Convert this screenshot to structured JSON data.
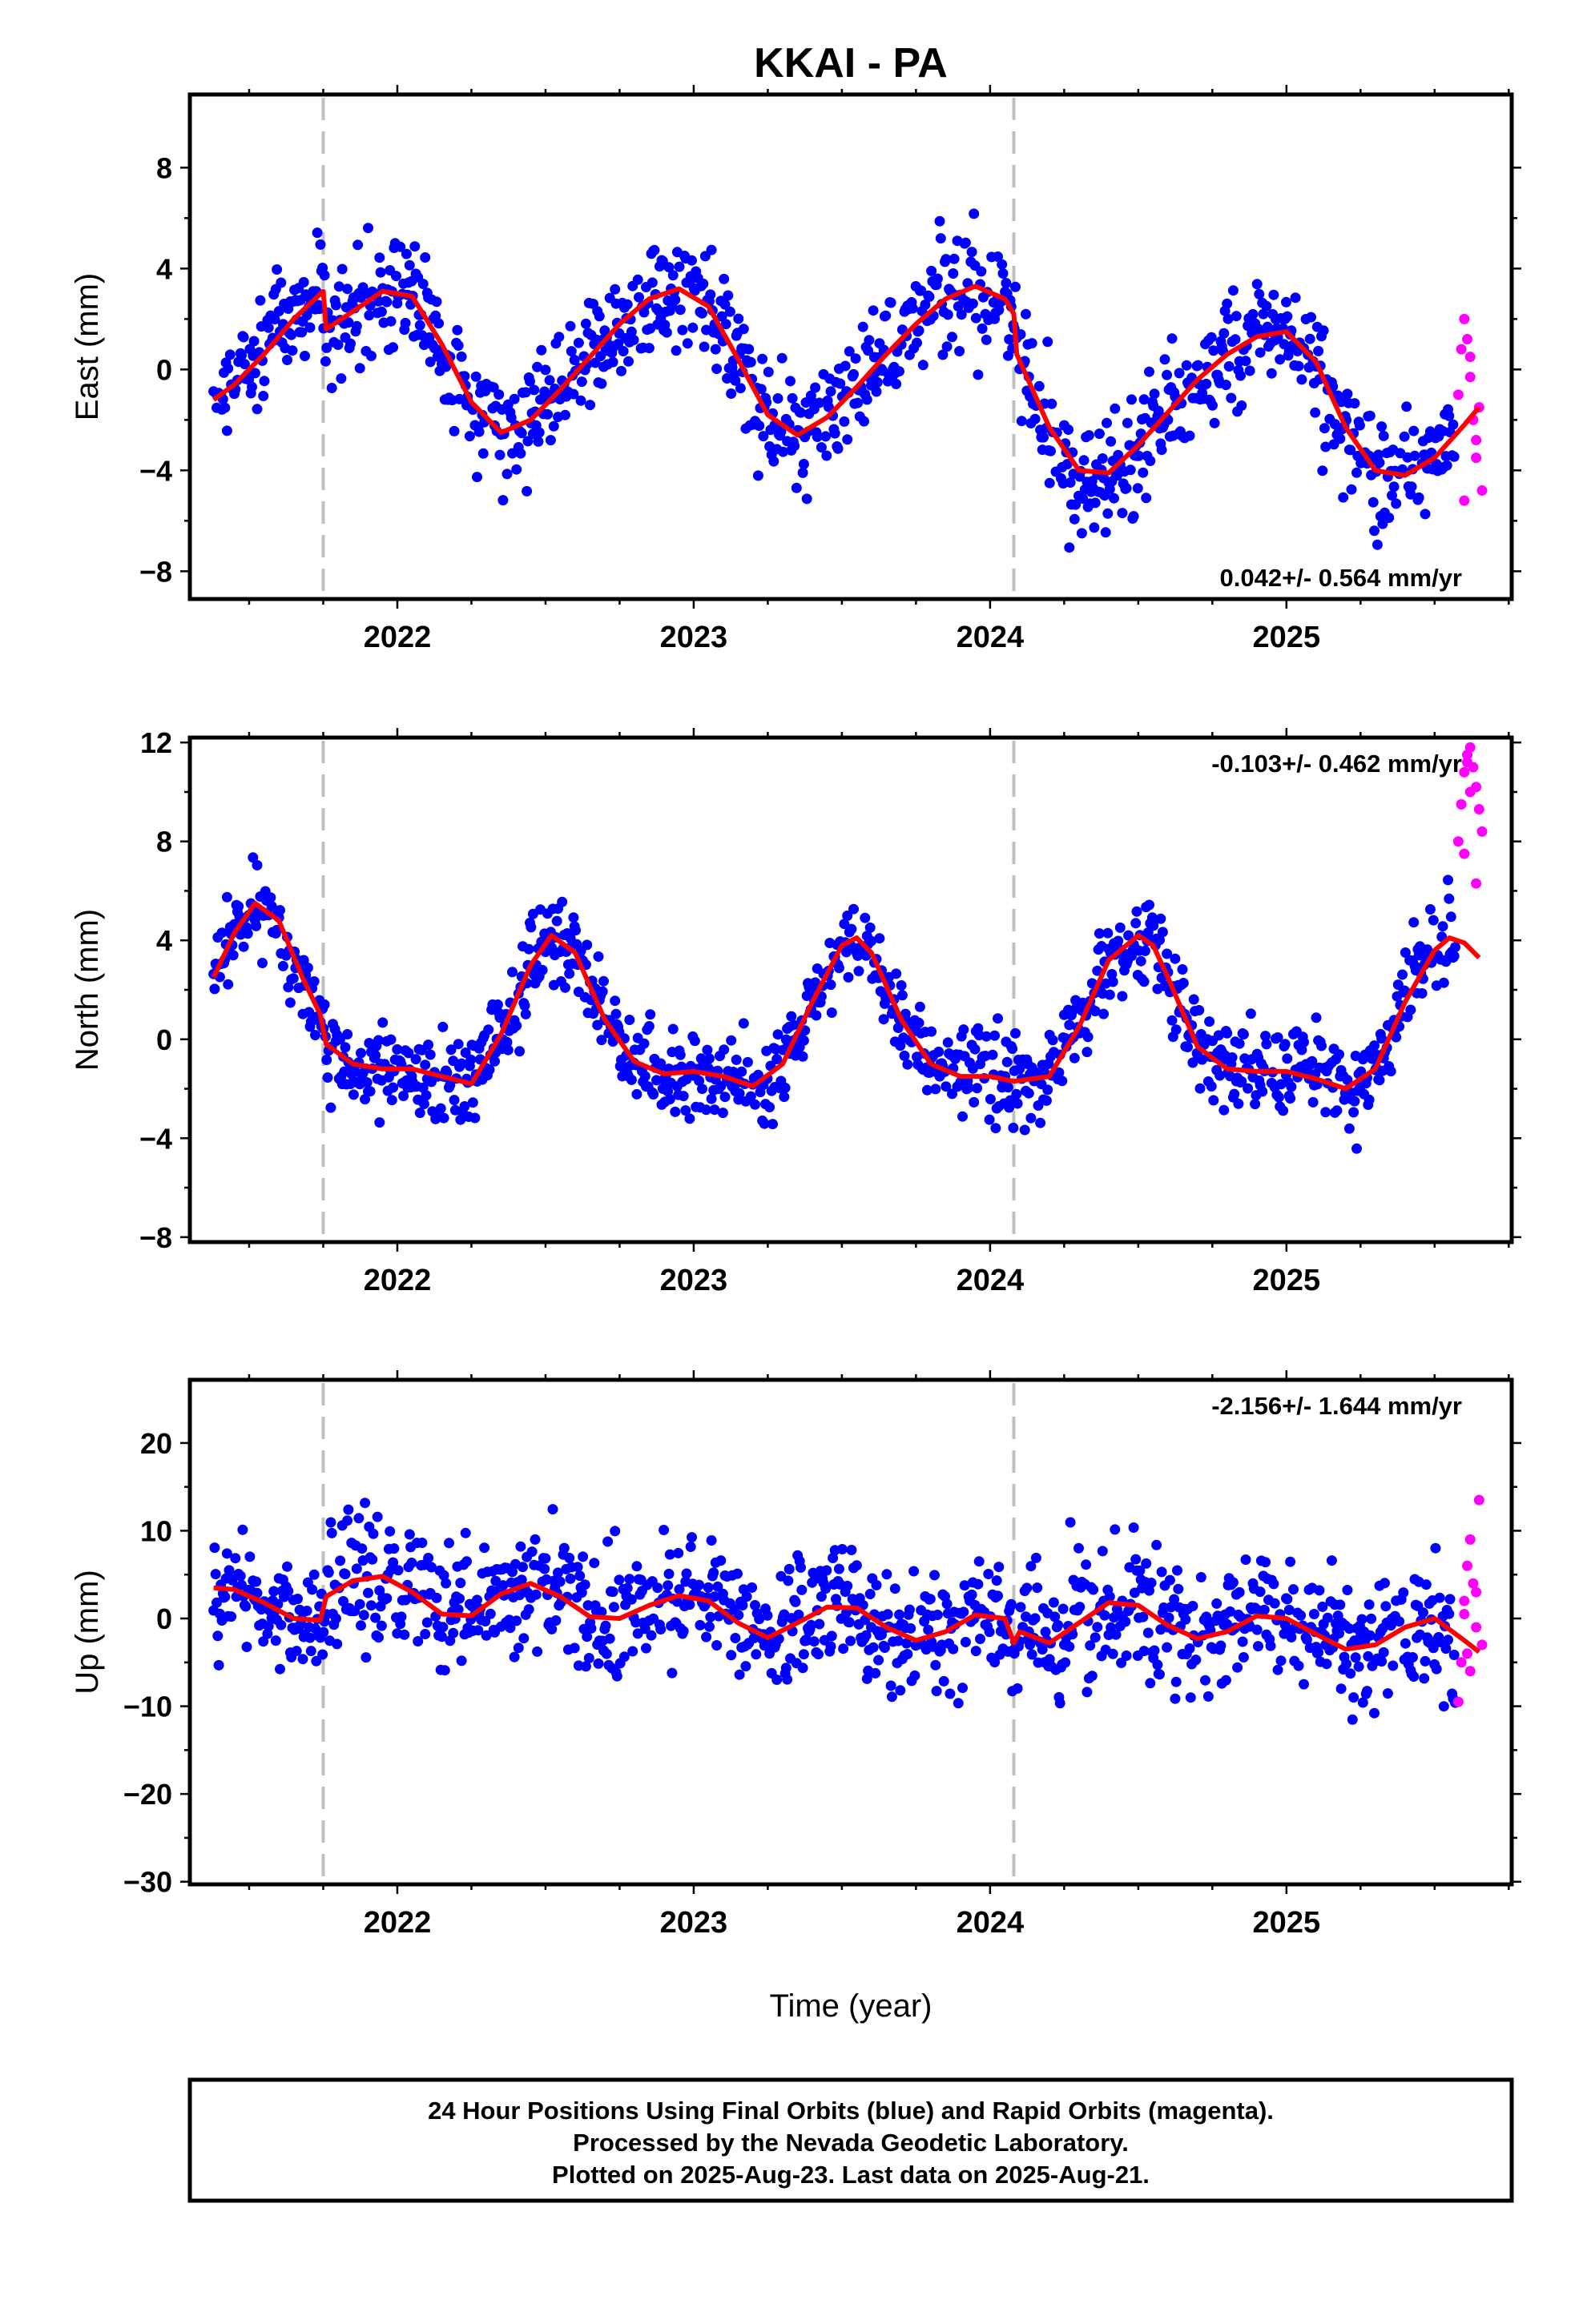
{
  "title": "KKAI - PA",
  "colors": {
    "final": "#0000ff",
    "rapid": "#ff00ff",
    "fit": "#ff0000",
    "event": "#c0c0c0"
  },
  "x_axis": {
    "label": "Time (year)",
    "ticks": [
      "2022",
      "2023",
      "2024",
      "2025"
    ]
  },
  "footer": {
    "line1": "24 Hour Positions Using Final Orbits (blue) and Rapid Orbits (magenta).",
    "line2": "Processed by the Nevada Geodetic Laboratory.",
    "line3": "Plotted on 2025-Aug-23. Last data on 2025-Aug-21."
  },
  "chart_data": [
    {
      "type": "scatter",
      "ylabel": "East (mm)",
      "xlabel": "",
      "rate_label": "0.042+/- 0.564 mm/yr",
      "xlim": [
        2021.3,
        2025.76
      ],
      "ylim": [
        -9.1,
        10.9
      ],
      "yticks": [
        -8,
        -4,
        0,
        4,
        8
      ],
      "xticks": [
        2022,
        2023,
        2024,
        2025
      ],
      "event_lines": [
        2021.75,
        2024.08
      ],
      "fit": {
        "x": [
          2021.38,
          2021.45,
          2021.55,
          2021.65,
          2021.75,
          2021.76,
          2021.85,
          2021.95,
          2022.05,
          2022.15,
          2022.25,
          2022.35,
          2022.45,
          2022.55,
          2022.65,
          2022.75,
          2022.85,
          2022.95,
          2023.05,
          2023.15,
          2023.25,
          2023.35,
          2023.45,
          2023.55,
          2023.65,
          2023.75,
          2023.85,
          2023.95,
          2024.05,
          2024.08,
          2024.09,
          2024.2,
          2024.3,
          2024.4,
          2024.5,
          2024.6,
          2024.7,
          2024.8,
          2024.9,
          2025.0,
          2025.1,
          2025.2,
          2025.3,
          2025.4,
          2025.5,
          2025.6,
          2025.65
        ],
        "y": [
          -1.2,
          -0.6,
          0.6,
          2.0,
          3.1,
          1.6,
          2.3,
          3.1,
          2.9,
          1.0,
          -1.3,
          -2.5,
          -2.0,
          -0.8,
          0.5,
          1.8,
          2.8,
          3.2,
          2.5,
          0.4,
          -1.8,
          -2.6,
          -1.9,
          -0.7,
          0.6,
          1.8,
          2.8,
          3.3,
          2.8,
          2.2,
          0.6,
          -2.3,
          -4.0,
          -4.1,
          -3.0,
          -1.7,
          -0.4,
          0.6,
          1.3,
          1.5,
          0.3,
          -2.3,
          -4.0,
          -4.2,
          -3.5,
          -2.2,
          -1.5
        ]
      },
      "rapid": {
        "x": [
          2025.58,
          2025.59,
          2025.6,
          2025.61,
          2025.62,
          2025.63,
          2025.64,
          2025.65,
          2025.66,
          2025.6,
          2025.62,
          2025.64
        ],
        "y": [
          -1.0,
          0.8,
          2.0,
          1.2,
          -0.3,
          -2.0,
          -3.5,
          -1.5,
          -4.8,
          -5.2,
          0.5,
          -2.8
        ]
      }
    },
    {
      "type": "scatter",
      "ylabel": "North (mm)",
      "xlabel": "",
      "rate_label": "-0.103+/- 0.462 mm/yr",
      "xlim": [
        2021.3,
        2025.76
      ],
      "ylim": [
        -8.2,
        12.2
      ],
      "yticks": [
        -8,
        -4,
        0,
        4,
        8,
        12
      ],
      "xticks": [
        2022,
        2023,
        2024,
        2025
      ],
      "event_lines": [
        2021.75,
        2024.08
      ],
      "fit": {
        "x": [
          2021.38,
          2021.45,
          2021.52,
          2021.6,
          2021.68,
          2021.74,
          2021.76,
          2021.85,
          2021.95,
          2022.05,
          2022.15,
          2022.25,
          2022.35,
          2022.45,
          2022.52,
          2022.6,
          2022.7,
          2022.8,
          2022.9,
          2023.0,
          2023.1,
          2023.2,
          2023.3,
          2023.4,
          2023.5,
          2023.55,
          2023.6,
          2023.7,
          2023.8,
          2023.9,
          2024.0,
          2024.08,
          2024.2,
          2024.3,
          2024.4,
          2024.5,
          2024.55,
          2024.6,
          2024.7,
          2024.8,
          2024.9,
          2025.0,
          2025.1,
          2025.2,
          2025.3,
          2025.4,
          2025.5,
          2025.55,
          2025.6,
          2025.65
        ],
        "y": [
          2.5,
          4.3,
          5.5,
          4.8,
          2.5,
          1.0,
          -0.2,
          -1.0,
          -1.2,
          -1.2,
          -1.5,
          -1.8,
          0.2,
          3.0,
          4.2,
          3.5,
          0.8,
          -0.9,
          -1.4,
          -1.3,
          -1.5,
          -1.9,
          -1.0,
          1.5,
          3.8,
          4.1,
          3.5,
          0.8,
          -1.0,
          -1.5,
          -1.5,
          -1.7,
          -1.5,
          0.5,
          3.2,
          4.2,
          3.8,
          2.5,
          -0.3,
          -1.2,
          -1.3,
          -1.3,
          -1.6,
          -2.0,
          -1.2,
          1.5,
          3.6,
          4.1,
          3.9,
          3.3
        ]
      },
      "rapid": {
        "x": [
          2025.58,
          2025.59,
          2025.6,
          2025.61,
          2025.62,
          2025.63,
          2025.64,
          2025.65,
          2025.66,
          2025.6,
          2025.62,
          2025.64,
          2025.61
        ],
        "y": [
          8.0,
          9.5,
          10.8,
          11.5,
          11.8,
          11.0,
          10.2,
          9.3,
          8.4,
          7.5,
          10.0,
          6.3,
          11.2
        ]
      }
    },
    {
      "type": "scatter",
      "ylabel": "Up (mm)",
      "xlabel": "Time (year)",
      "rate_label": "-2.156+/- 1.644 mm/yr",
      "xlim": [
        2021.3,
        2025.76
      ],
      "ylim": [
        -30.3,
        27.2
      ],
      "yticks": [
        -30,
        -20,
        -10,
        0,
        10,
        20
      ],
      "xticks": [
        2022,
        2023,
        2024,
        2025
      ],
      "event_lines": [
        2021.75,
        2024.08
      ],
      "fit": {
        "x": [
          2021.38,
          2021.45,
          2021.55,
          2021.65,
          2021.74,
          2021.76,
          2021.85,
          2021.95,
          2022.05,
          2022.15,
          2022.25,
          2022.35,
          2022.45,
          2022.55,
          2022.65,
          2022.75,
          2022.85,
          2022.95,
          2023.05,
          2023.15,
          2023.25,
          2023.35,
          2023.45,
          2023.55,
          2023.65,
          2023.75,
          2023.85,
          2023.95,
          2024.05,
          2024.08,
          2024.1,
          2024.2,
          2024.3,
          2024.4,
          2024.5,
          2024.6,
          2024.7,
          2024.8,
          2024.9,
          2025.0,
          2025.1,
          2025.2,
          2025.3,
          2025.4,
          2025.5,
          2025.6,
          2025.65
        ],
        "y": [
          3.5,
          3.3,
          1.8,
          0.0,
          -0.2,
          2.5,
          4.3,
          4.8,
          3.0,
          0.5,
          0.3,
          2.8,
          4.0,
          2.5,
          0.2,
          0.0,
          1.5,
          2.6,
          2.0,
          -0.5,
          -2.2,
          -0.5,
          1.3,
          1.2,
          -1.0,
          -2.5,
          -1.5,
          0.4,
          0.0,
          -2.8,
          -1.5,
          -2.8,
          -0.5,
          1.8,
          1.5,
          -0.8,
          -2.3,
          -1.5,
          0.3,
          0.0,
          -1.8,
          -3.5,
          -3.0,
          -1.0,
          0.0,
          -2.5,
          -3.8
        ]
      },
      "rapid": {
        "x": [
          2025.58,
          2025.59,
          2025.6,
          2025.61,
          2025.62,
          2025.63,
          2025.64,
          2025.65,
          2025.66,
          2025.6,
          2025.62,
          2025.64,
          2025.61
        ],
        "y": [
          -9.5,
          -5.0,
          2.0,
          6.0,
          9.0,
          4.0,
          -1.0,
          13.5,
          -3.0,
          0.5,
          -6.0,
          3.0,
          -4.0
        ]
      }
    }
  ]
}
